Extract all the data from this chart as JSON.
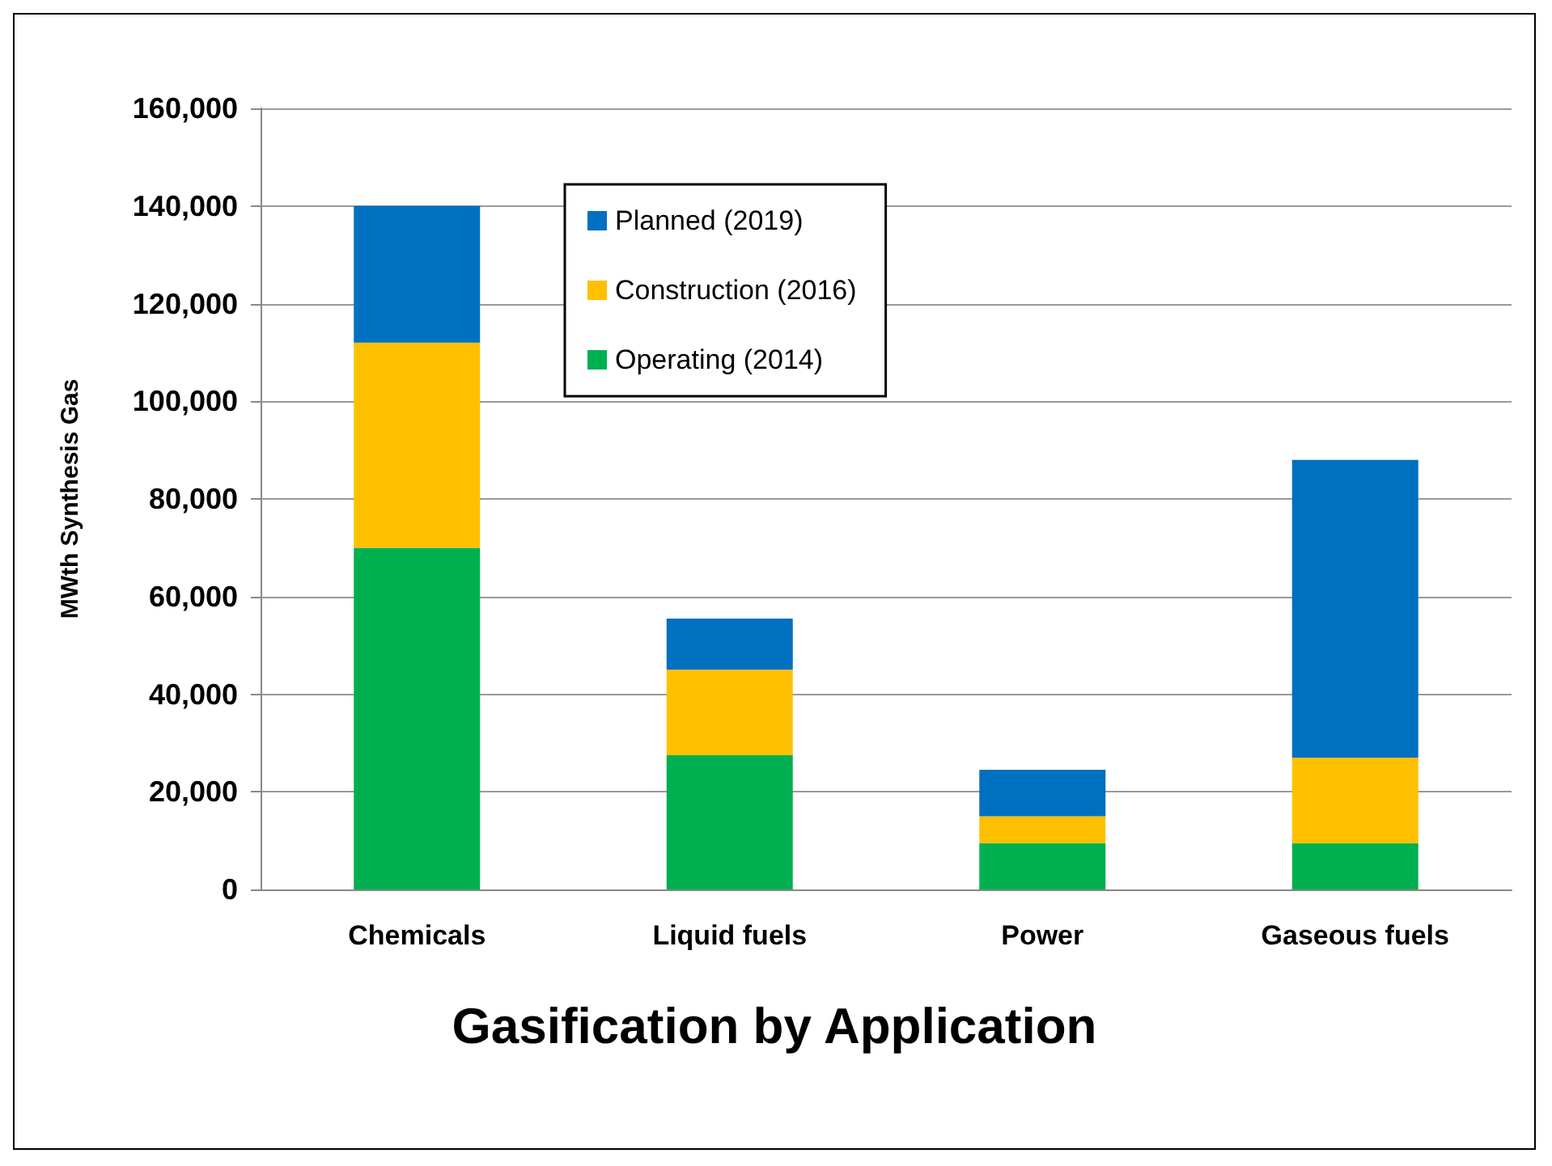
{
  "chart_data": {
    "type": "bar",
    "title": "Gasification by Application",
    "ylabel": "MWth Synthesis Gas",
    "categories": [
      "Chemicals",
      "Liquid fuels",
      "Power",
      "Gaseous fuels"
    ],
    "stacked": true,
    "series": [
      {
        "name": "Operating (2014)",
        "color": "#00b050",
        "values": [
          70000,
          27500,
          9500,
          9500
        ]
      },
      {
        "name": "Construction (2016)",
        "color": "#ffc000",
        "values": [
          42000,
          17500,
          5500,
          17500
        ]
      },
      {
        "name": "Planned (2019)",
        "color": "#0070c0",
        "values": [
          28000,
          10500,
          9500,
          61000
        ]
      }
    ],
    "ylim": [
      0,
      160000
    ],
    "yticks": [
      0,
      {
        "value": 20000,
        "label": "20,000"
      },
      {
        "value": 40000,
        "label": "40,000"
      },
      {
        "value": 60000,
        "label": "60,000"
      },
      {
        "value": 80000,
        "label": "80,000"
      },
      {
        "value": 100000,
        "label": "100,000"
      },
      {
        "value": 120000,
        "label": "120,000"
      },
      {
        "value": 140000,
        "label": "140,000"
      },
      {
        "value": 160000,
        "label": "160,000"
      }
    ],
    "grid": "y",
    "legend": "top left"
  }
}
